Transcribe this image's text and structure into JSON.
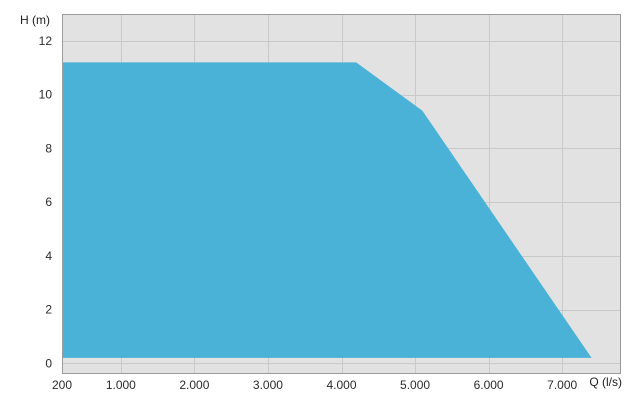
{
  "chart_data": {
    "type": "area",
    "title": "",
    "xlabel": "Q (l/s)",
    "ylabel": "H (m)",
    "x_tick_labels": [
      "200",
      "1.000",
      "2.000",
      "3.000",
      "4.000",
      "5.000",
      "6.000",
      "7.000"
    ],
    "y_tick_labels": [
      "0",
      "2",
      "4",
      "6",
      "8",
      "10",
      "12"
    ],
    "x_ticks": [
      200,
      1000,
      2000,
      3000,
      4000,
      5000,
      6000,
      7000
    ],
    "y_ticks": [
      0,
      2,
      4,
      6,
      8,
      10,
      12
    ],
    "xlim": [
      200,
      7800
    ],
    "ylim": [
      -0.4,
      13.0
    ],
    "grid": true,
    "series": [
      {
        "x": [
          200,
          4200,
          5100,
          7400,
          200
        ],
        "y": [
          11.2,
          11.2,
          9.4,
          0.2,
          0.2
        ],
        "color": "#49b2d6"
      }
    ],
    "colors": {
      "plot_background": "#e2e2e2",
      "gridline": "#c9c9c9",
      "frame": "#9b9b9b"
    }
  }
}
